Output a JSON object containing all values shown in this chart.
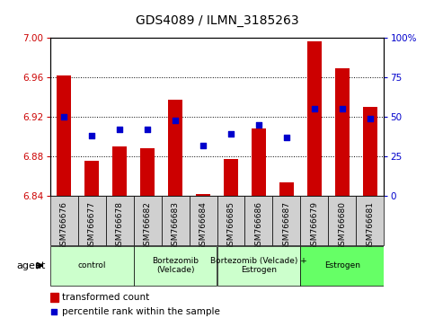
{
  "title": "GDS4089 / ILMN_3185263",
  "samples": [
    "GSM766676",
    "GSM766677",
    "GSM766678",
    "GSM766682",
    "GSM766683",
    "GSM766684",
    "GSM766685",
    "GSM766686",
    "GSM766687",
    "GSM766679",
    "GSM766680",
    "GSM766681"
  ],
  "transformed_count": [
    6.962,
    6.875,
    6.89,
    6.888,
    6.937,
    6.842,
    6.877,
    6.908,
    6.853,
    6.997,
    6.969,
    6.93
  ],
  "percentile_rank": [
    50,
    38,
    42,
    42,
    48,
    32,
    39,
    45,
    37,
    55,
    55,
    49
  ],
  "group_starts": [
    0,
    3,
    6,
    9
  ],
  "group_ends": [
    2,
    5,
    8,
    11
  ],
  "group_labels": [
    "control",
    "Bortezomib\n(Velcade)",
    "Bortezomib (Velcade) +\nEstrogen",
    "Estrogen"
  ],
  "group_colors": [
    "#ccffcc",
    "#ccffcc",
    "#ccffcc",
    "#66ff66"
  ],
  "ylim_left": [
    6.84,
    7.0
  ],
  "ylim_right": [
    0,
    100
  ],
  "yticks_left": [
    6.84,
    6.88,
    6.92,
    6.96,
    7.0
  ],
  "yticks_right": [
    0,
    25,
    50,
    75,
    100
  ],
  "bar_color": "#cc0000",
  "dot_color": "#0000cc",
  "bar_width": 0.5,
  "dot_size": 25,
  "background_color": "#ffffff",
  "grid_color": "#000000",
  "legend_bar": "transformed count",
  "legend_dot": "percentile rank within the sample",
  "cell_bg": "#d0d0d0"
}
